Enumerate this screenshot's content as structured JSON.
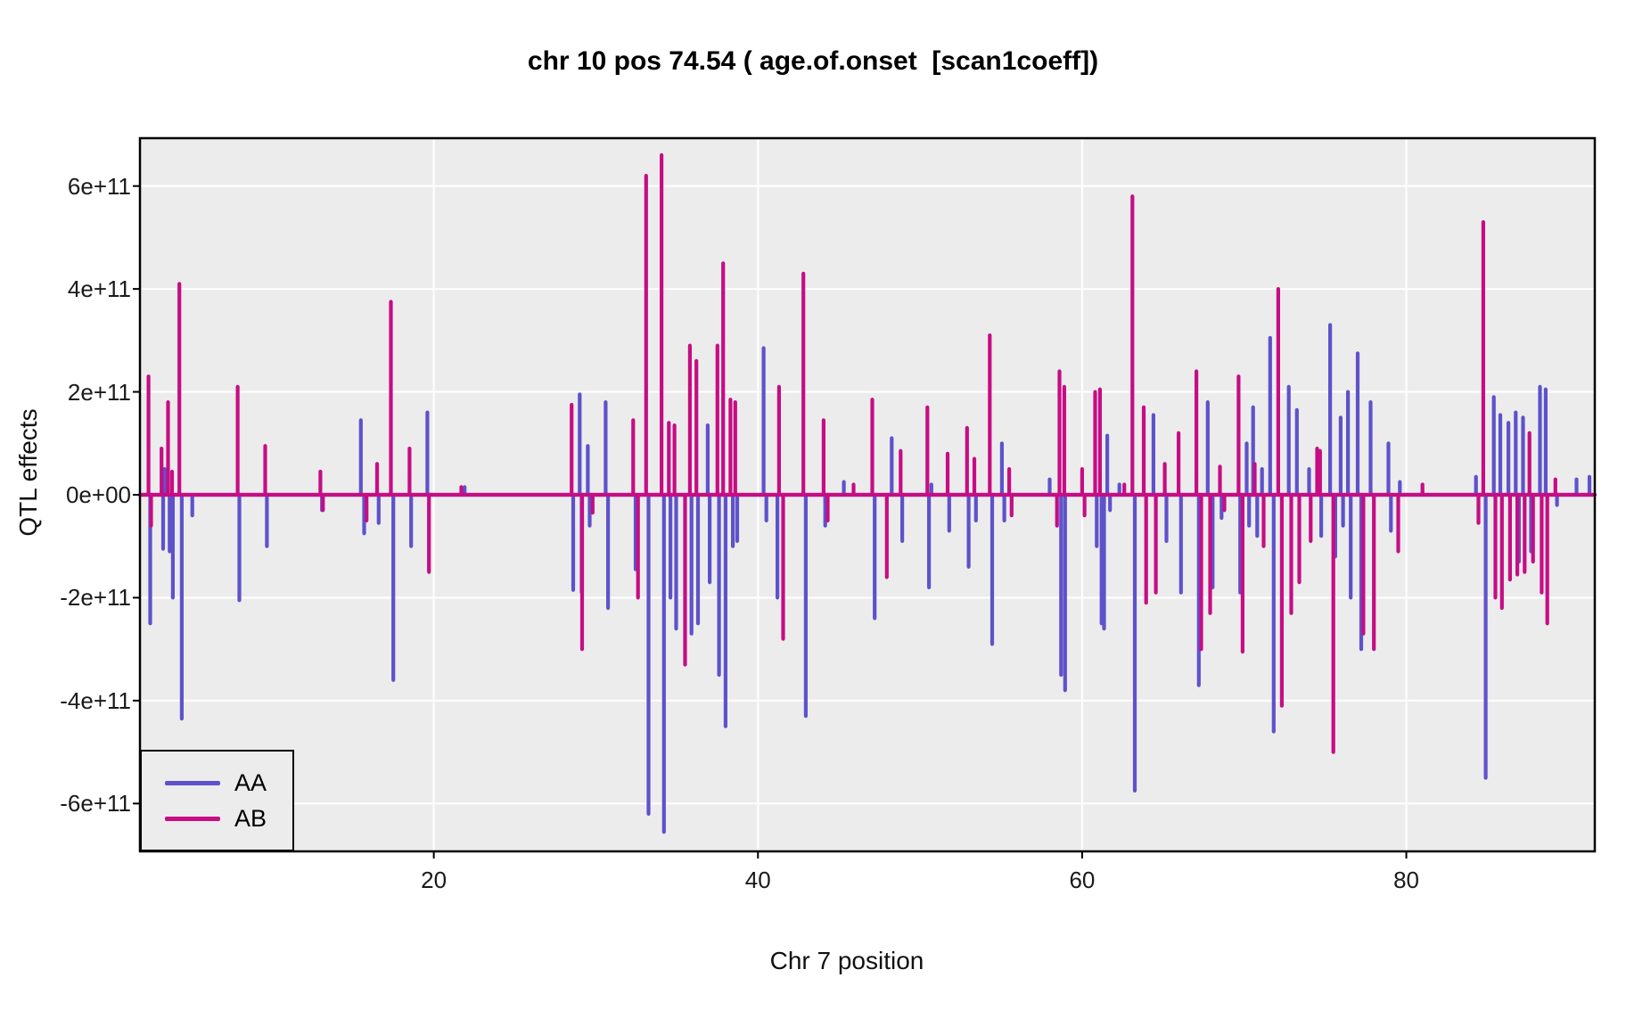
{
  "title": "chr 10 pos 74.54 ( age.of.onset  [scan1coeff])",
  "axes": {
    "x_label": "Chr 7 position",
    "y_label": "QTL effects"
  },
  "legend": {
    "items": [
      {
        "label": "AA",
        "color": "#5E52CB"
      },
      {
        "label": "AB",
        "color": "#C60D84"
      }
    ]
  },
  "colors": {
    "aa_series": "#5E52CB",
    "ab_series": "#C60D84",
    "panel_bg": "#ECECEC",
    "gridline": "#FFFFFF",
    "panel_border": "#000000",
    "tick_text": "#1A1A1A"
  },
  "chart_data": {
    "type": "line",
    "title": "chr 10 pos 74.54 ( age.of.onset  [scan1coeff])",
    "xlabel": "Chr 7 position",
    "ylabel": "QTL effects",
    "grid": "major-only",
    "legend_position": "inside-bottom-left",
    "y_unit": "1e11",
    "xlim": [
      1.87,
      91.63
    ],
    "ylim": [
      -6.93,
      6.93
    ],
    "x_ticks": [
      20,
      40,
      60,
      80
    ],
    "y_ticks": [
      {
        "value": 6,
        "label": "6e+11"
      },
      {
        "value": 4,
        "label": "4e+11"
      },
      {
        "value": 2,
        "label": "2e+11"
      },
      {
        "value": 0,
        "label": "0e+00"
      },
      {
        "value": -2,
        "label": "-2e+11"
      },
      {
        "value": -4,
        "label": "-4e+11"
      },
      {
        "value": -6,
        "label": "-6e+11"
      }
    ],
    "series": [
      {
        "name": "AA",
        "color": "#5E52CB",
        "baseline": 0,
        "spikes": [
          [
            2.5,
            -2.5
          ],
          [
            3.3,
            -1.05
          ],
          [
            3.38,
            0.5
          ],
          [
            3.7,
            -1.1
          ],
          [
            3.9,
            -2.0
          ],
          [
            4.45,
            -4.35
          ],
          [
            5.1,
            -0.4
          ],
          [
            8.0,
            -2.05
          ],
          [
            9.7,
            -1.0
          ],
          [
            13.1,
            -0.3
          ],
          [
            15.5,
            1.45
          ],
          [
            15.7,
            -0.75
          ],
          [
            16.6,
            -0.55
          ],
          [
            17.5,
            -3.6
          ],
          [
            18.6,
            -1.0
          ],
          [
            19.6,
            1.6
          ],
          [
            21.9,
            0.15
          ],
          [
            28.6,
            -1.85
          ],
          [
            29.0,
            1.95
          ],
          [
            29.12,
            -1.9
          ],
          [
            29.5,
            0.95
          ],
          [
            29.62,
            -0.6
          ],
          [
            30.6,
            1.8
          ],
          [
            30.75,
            -2.2
          ],
          [
            32.45,
            -1.45
          ],
          [
            33.25,
            -6.2
          ],
          [
            34.2,
            -6.55
          ],
          [
            34.6,
            -2.0
          ],
          [
            34.95,
            -2.6
          ],
          [
            35.9,
            -2.7
          ],
          [
            36.3,
            -2.5
          ],
          [
            36.9,
            1.35
          ],
          [
            37.02,
            -1.7
          ],
          [
            37.6,
            -3.5
          ],
          [
            38.0,
            -4.5
          ],
          [
            38.45,
            -1.0
          ],
          [
            38.72,
            -0.9
          ],
          [
            40.35,
            2.85
          ],
          [
            40.52,
            -0.5
          ],
          [
            41.2,
            -2.0
          ],
          [
            42.95,
            -4.3
          ],
          [
            44.15,
            -0.6
          ],
          [
            45.3,
            0.25
          ],
          [
            47.2,
            -2.4
          ],
          [
            48.25,
            1.1
          ],
          [
            48.9,
            -0.9
          ],
          [
            50.55,
            -1.8
          ],
          [
            50.7,
            0.2
          ],
          [
            51.8,
            -0.7
          ],
          [
            53.0,
            -1.4
          ],
          [
            53.45,
            -0.5
          ],
          [
            54.45,
            -2.9
          ],
          [
            55.05,
            1.0
          ],
          [
            55.2,
            -0.5
          ],
          [
            58.0,
            0.3
          ],
          [
            58.7,
            -3.5
          ],
          [
            58.95,
            -3.8
          ],
          [
            60.9,
            -1.0
          ],
          [
            61.2,
            -2.5
          ],
          [
            61.35,
            -2.6
          ],
          [
            61.55,
            1.15
          ],
          [
            61.72,
            -0.3
          ],
          [
            62.3,
            0.2
          ],
          [
            63.25,
            -5.75
          ],
          [
            64.4,
            1.55
          ],
          [
            65.2,
            -0.9
          ],
          [
            66.1,
            -1.9
          ],
          [
            67.2,
            -3.7
          ],
          [
            67.75,
            1.8
          ],
          [
            68.05,
            -1.8
          ],
          [
            68.6,
            -0.45
          ],
          [
            69.75,
            -1.9
          ],
          [
            70.15,
            1.0
          ],
          [
            70.3,
            -0.6
          ],
          [
            70.55,
            1.7
          ],
          [
            70.8,
            -0.8
          ],
          [
            71.1,
            0.5
          ],
          [
            71.6,
            3.05
          ],
          [
            71.82,
            -4.6
          ],
          [
            72.75,
            2.1
          ],
          [
            73.25,
            1.65
          ],
          [
            74.0,
            0.5
          ],
          [
            74.75,
            -0.8
          ],
          [
            75.3,
            3.3
          ],
          [
            75.62,
            -1.2
          ],
          [
            75.95,
            1.5
          ],
          [
            76.1,
            -0.6
          ],
          [
            76.4,
            2.0
          ],
          [
            76.57,
            -2.0
          ],
          [
            77.0,
            2.75
          ],
          [
            77.22,
            -3.0
          ],
          [
            77.8,
            1.8
          ],
          [
            78.9,
            1.0
          ],
          [
            79.05,
            -0.7
          ],
          [
            79.6,
            0.25
          ],
          [
            84.3,
            0.35
          ],
          [
            84.9,
            -5.5
          ],
          [
            85.4,
            1.9
          ],
          [
            85.8,
            1.55
          ],
          [
            86.3,
            1.4
          ],
          [
            86.75,
            1.6
          ],
          [
            86.95,
            -1.3
          ],
          [
            87.2,
            1.5
          ],
          [
            87.7,
            -1.1
          ],
          [
            88.25,
            2.1
          ],
          [
            88.6,
            2.05
          ],
          [
            89.3,
            -0.2
          ],
          [
            90.5,
            0.3
          ],
          [
            91.3,
            0.35
          ]
        ]
      },
      {
        "name": "AB",
        "color": "#C60D84",
        "baseline": 0,
        "spikes": [
          [
            2.4,
            2.3
          ],
          [
            2.56,
            -0.6
          ],
          [
            3.2,
            0.9
          ],
          [
            3.6,
            1.8
          ],
          [
            3.85,
            0.45
          ],
          [
            4.3,
            4.1
          ],
          [
            7.9,
            2.1
          ],
          [
            9.6,
            0.95
          ],
          [
            13.0,
            0.45
          ],
          [
            13.16,
            -0.3
          ],
          [
            15.85,
            -0.5
          ],
          [
            16.5,
            0.6
          ],
          [
            17.35,
            3.75
          ],
          [
            18.5,
            0.9
          ],
          [
            19.7,
            -1.5
          ],
          [
            21.7,
            0.15
          ],
          [
            28.5,
            1.75
          ],
          [
            29.15,
            -3.0
          ],
          [
            29.8,
            -0.35
          ],
          [
            32.3,
            1.45
          ],
          [
            32.6,
            -2.0
          ],
          [
            33.1,
            6.2
          ],
          [
            34.05,
            6.6
          ],
          [
            34.5,
            1.4
          ],
          [
            34.85,
            1.35
          ],
          [
            35.5,
            -3.3
          ],
          [
            35.8,
            2.9
          ],
          [
            36.2,
            2.6
          ],
          [
            37.5,
            2.9
          ],
          [
            37.85,
            4.5
          ],
          [
            38.3,
            1.85
          ],
          [
            38.6,
            1.8
          ],
          [
            41.3,
            2.1
          ],
          [
            41.55,
            -2.8
          ],
          [
            42.8,
            4.3
          ],
          [
            44.05,
            1.45
          ],
          [
            44.3,
            -0.5
          ],
          [
            45.9,
            0.2
          ],
          [
            47.05,
            1.85
          ],
          [
            47.95,
            -1.6
          ],
          [
            48.8,
            0.85
          ],
          [
            50.45,
            1.7
          ],
          [
            51.7,
            0.8
          ],
          [
            52.9,
            1.3
          ],
          [
            53.35,
            0.7
          ],
          [
            54.3,
            3.1
          ],
          [
            55.5,
            0.5
          ],
          [
            55.65,
            -0.4
          ],
          [
            58.45,
            -0.6
          ],
          [
            58.6,
            2.4
          ],
          [
            58.9,
            2.1
          ],
          [
            60.0,
            0.5
          ],
          [
            60.15,
            -0.4
          ],
          [
            60.8,
            2.0
          ],
          [
            61.1,
            2.05
          ],
          [
            62.6,
            0.2
          ],
          [
            63.1,
            5.8
          ],
          [
            63.8,
            1.7
          ],
          [
            63.95,
            -2.1
          ],
          [
            64.55,
            -1.9
          ],
          [
            65.1,
            0.6
          ],
          [
            65.95,
            1.2
          ],
          [
            67.05,
            2.4
          ],
          [
            67.35,
            -3.0
          ],
          [
            67.9,
            -2.3
          ],
          [
            68.5,
            0.55
          ],
          [
            68.78,
            -0.3
          ],
          [
            69.65,
            2.3
          ],
          [
            69.9,
            -3.05
          ],
          [
            70.65,
            0.6
          ],
          [
            71.2,
            -1.0
          ],
          [
            72.1,
            4.0
          ],
          [
            72.32,
            -4.1
          ],
          [
            72.9,
            -2.3
          ],
          [
            73.4,
            -1.7
          ],
          [
            74.1,
            -0.9
          ],
          [
            74.5,
            0.9
          ],
          [
            74.68,
            0.85
          ],
          [
            75.5,
            -5.0
          ],
          [
            77.35,
            -2.7
          ],
          [
            78.0,
            -3.0
          ],
          [
            79.5,
            -1.1
          ],
          [
            81.0,
            0.2
          ],
          [
            84.45,
            -0.55
          ],
          [
            84.75,
            5.3
          ],
          [
            85.5,
            -2.0
          ],
          [
            85.9,
            -2.2
          ],
          [
            86.4,
            -1.65
          ],
          [
            86.85,
            -1.55
          ],
          [
            87.3,
            -1.5
          ],
          [
            87.6,
            1.2
          ],
          [
            87.82,
            -1.3
          ],
          [
            88.35,
            -1.9
          ],
          [
            88.7,
            -2.5
          ],
          [
            89.2,
            0.3
          ]
        ]
      }
    ]
  }
}
